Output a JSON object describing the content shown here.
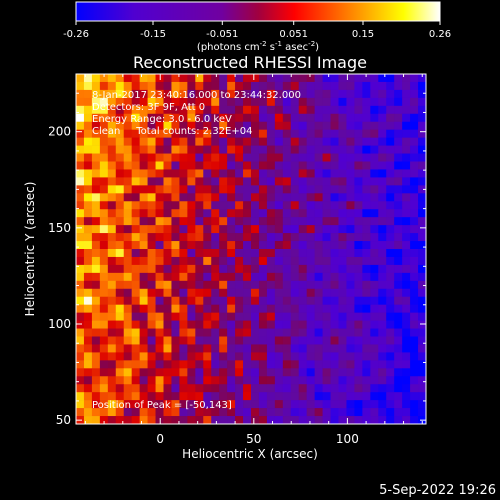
{
  "chart_data": {
    "type": "heatmap",
    "title": "Reconstructed RHESSI Image",
    "xlabel": "Heliocentric X (arcsec)",
    "ylabel": "Heliocentric Y (arcsec)",
    "xlim": [
      -45,
      142
    ],
    "ylim": [
      48,
      230
    ],
    "x_ticks": [
      0,
      50,
      100
    ],
    "y_ticks": [
      50,
      100,
      150,
      200
    ],
    "colorbar": {
      "min": -0.26,
      "max": 0.26,
      "ticks": [
        -0.26,
        -0.15,
        -0.051,
        0.051,
        0.15,
        0.26
      ],
      "tick_labels": [
        "-0.26",
        "-0.15",
        "-0.051",
        "0.051",
        "0.15",
        "0.26"
      ],
      "unit_label": "(photons cm",
      "unit_parts": [
        "(photons cm",
        "-2",
        " s",
        "-1",
        " asec",
        "-2",
        ")"
      ],
      "colormap": [
        "#0000ff",
        "#5000d0",
        "#7000a0",
        "#ff0000",
        "#ff8000",
        "#ffff00",
        "#ffffff"
      ]
    },
    "annotations": [
      "8-Jan-2017 23:40:16.000 to 23:44:32.000",
      "Detectors: 3F 9F, Att 0",
      "Energy Range: 3.0 - 6.0 keV",
      "Clean     Total counts: 2.32E+04"
    ],
    "peak_label": "Position of Peak = [-50,143]",
    "peak": [
      -50,
      143
    ],
    "image_summary": {
      "description_value_range": [
        -0.26,
        0.26
      ],
      "gradient": "high on left (x<0), low/negative on right (x>60)"
    }
  },
  "footer": {
    "date": "5-Sep-2022 19:26"
  }
}
